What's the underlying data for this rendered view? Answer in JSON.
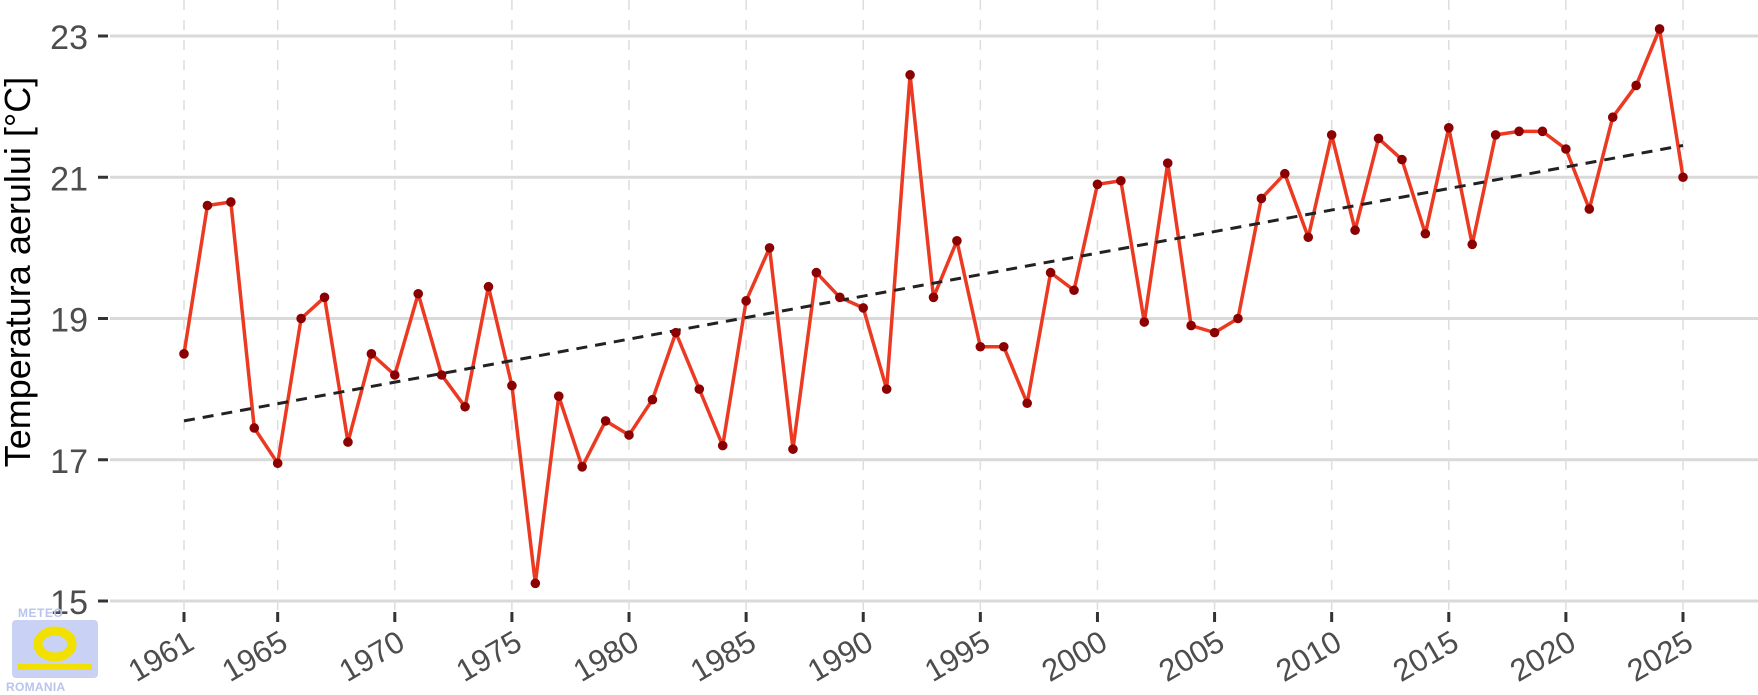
{
  "chart_data": {
    "type": "line",
    "title": "",
    "xlabel": "",
    "ylabel": "Temperatura aerului [°C]",
    "xlim": [
      1961,
      2025
    ],
    "ylim": [
      15,
      23
    ],
    "x_ticks": [
      1961,
      1965,
      1970,
      1975,
      1980,
      1985,
      1990,
      1995,
      2000,
      2005,
      2010,
      2015,
      2020,
      2025
    ],
    "y_ticks": [
      15,
      17,
      19,
      21,
      23
    ],
    "grid": true,
    "series": [
      {
        "color": "#ec3a22",
        "marker_color": "#8b0000",
        "x": [
          1961,
          1962,
          1963,
          1964,
          1965,
          1966,
          1967,
          1968,
          1969,
          1970,
          1971,
          1972,
          1973,
          1974,
          1975,
          1976,
          1977,
          1978,
          1979,
          1980,
          1981,
          1982,
          1983,
          1984,
          1985,
          1986,
          1987,
          1988,
          1989,
          1990,
          1991,
          1992,
          1993,
          1994,
          1995,
          1996,
          1997,
          1998,
          1999,
          2000,
          2001,
          2002,
          2003,
          2004,
          2005,
          2006,
          2007,
          2008,
          2009,
          2010,
          2011,
          2012,
          2013,
          2014,
          2015,
          2016,
          2017,
          2018,
          2019,
          2020,
          2021,
          2022,
          2023,
          2024,
          2025
        ],
        "values": [
          18.5,
          20.6,
          20.65,
          17.45,
          16.95,
          19.0,
          19.3,
          17.25,
          18.5,
          18.2,
          19.35,
          18.2,
          17.75,
          19.45,
          18.05,
          15.25,
          17.9,
          16.9,
          17.55,
          17.35,
          17.85,
          18.8,
          18.0,
          17.2,
          19.25,
          20.0,
          17.15,
          19.65,
          19.3,
          19.15,
          18.0,
          22.45,
          19.3,
          20.1,
          18.6,
          18.6,
          17.8,
          19.65,
          19.4,
          20.9,
          20.95,
          18.95,
          21.2,
          18.9,
          18.8,
          19.0,
          20.7,
          21.05,
          20.15,
          21.6,
          20.25,
          21.55,
          21.25,
          20.2,
          21.7,
          20.05,
          21.6,
          21.65,
          21.65,
          21.4,
          20.55,
          21.85,
          22.3,
          23.1,
          21.0
        ]
      },
      {
        "name": "trend",
        "type": "linear-trend",
        "color": "#222222",
        "x": [
          1961,
          2025
        ],
        "values": [
          17.55,
          21.45
        ]
      }
    ]
  },
  "logo": {
    "top_text": "METEO",
    "bottom_text": "ROMANIA",
    "colors": {
      "background": "#c9d2f4",
      "ring": "#f2e000"
    }
  }
}
